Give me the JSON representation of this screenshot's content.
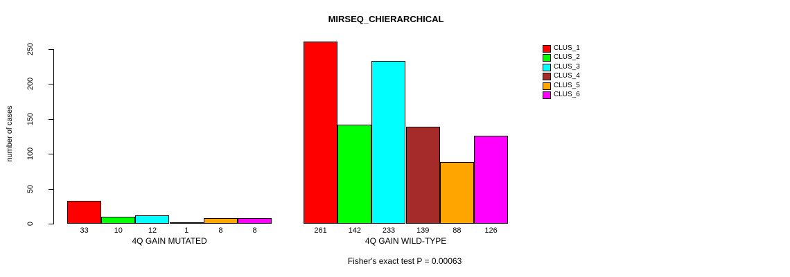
{
  "chart_data": {
    "type": "bar",
    "title": "MIRSEQ_CHIERARCHICAL",
    "ylabel": "number of cases",
    "xlabel": "",
    "ylim": [
      0,
      250
    ],
    "yticks": [
      0,
      50,
      100,
      150,
      200,
      250
    ],
    "categories": [
      "4Q GAIN MUTATED",
      "4Q GAIN WILD-TYPE"
    ],
    "series": [
      {
        "name": "CLUS_1",
        "color": "#FF0000",
        "values": [
          33,
          261
        ]
      },
      {
        "name": "CLUS_2",
        "color": "#00FF00",
        "values": [
          10,
          142
        ]
      },
      {
        "name": "CLUS_3",
        "color": "#00FFFF",
        "values": [
          12,
          233
        ]
      },
      {
        "name": "CLUS_4",
        "color": "#A52A2A",
        "values": [
          1,
          139
        ]
      },
      {
        "name": "CLUS_5",
        "color": "#FFA500",
        "values": [
          8,
          88
        ]
      },
      {
        "name": "CLUS_6",
        "color": "#FF00FF",
        "values": [
          8,
          126
        ]
      }
    ],
    "show_value_labels": true,
    "grid": false,
    "legend_position": "right",
    "legend_entries": [
      "CLUS_1",
      "CLUS_2",
      "CLUS_3",
      "CLUS_4",
      "CLUS_5",
      "CLUS_6"
    ],
    "annotation": "Fisher's exact test P = 0.00063",
    "axis_color": "#000000",
    "background_color": "#FFFFFF"
  }
}
